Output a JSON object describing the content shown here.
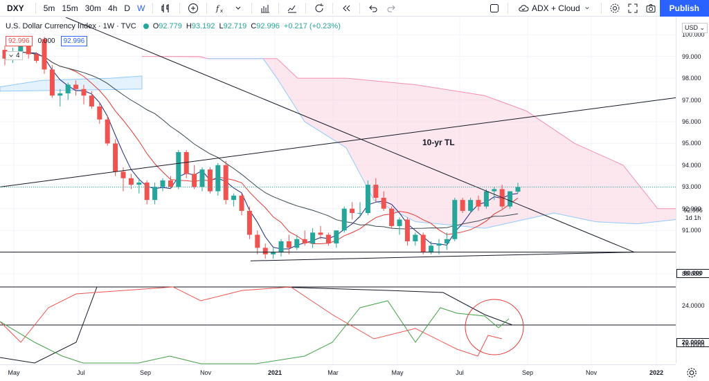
{
  "toolbar": {
    "symbol": "DXY",
    "intervals": [
      "5m",
      "15m",
      "30m",
      "4h",
      "D",
      "W"
    ],
    "active_interval": "W",
    "layout_name": "ADX + Cloud",
    "publish_label": "Publish"
  },
  "legend": {
    "title": "U.S. Dollar Currency Index · 1W · TVC",
    "open_label": "O",
    "open": "92.779",
    "high_label": "H",
    "high": "93.192",
    "low_label": "L",
    "low": "92.719",
    "close_label": "C",
    "close": "92.996",
    "change": "+0.217 (+0.23%)",
    "ind_value_1": "92.996",
    "ind_value_2": "0.000",
    "ind_value_3": "92.996",
    "collapse_count": "4"
  },
  "currency_select": "USD",
  "price_scale": {
    "ticks": [
      "100.000",
      "99.000",
      "98.000",
      "97.000",
      "96.000",
      "95.000",
      "94.000",
      "93.000",
      "92.000",
      "91.000",
      "89.000"
    ],
    "current_price": "92.996",
    "countdown": "1d 1h",
    "line_90": "90.000",
    "indicator_ticks": [
      "24.0000",
      "16.0000"
    ],
    "line_20": "20.0000"
  },
  "time_scale": {
    "labels": [
      "May",
      "Jul",
      "Sep",
      "Nov",
      "2021",
      "Mar",
      "May",
      "Jul",
      "Sep",
      "Nov",
      "2022"
    ]
  },
  "annotation": "10-yr TL",
  "colors": {
    "up": "#26a69a",
    "down": "#ef5350",
    "accent": "#2962ff",
    "cloud": "#f8bbd0"
  },
  "chart_data": {
    "type": "candlestick",
    "symbol": "DXY",
    "timeframe": "1W",
    "ylim": [
      88.4,
      100.8
    ],
    "candles": [
      {
        "o": 99.3,
        "h": 99.5,
        "l": 98.6,
        "c": 98.9
      },
      {
        "o": 98.9,
        "h": 99.4,
        "l": 98.7,
        "c": 99.2
      },
      {
        "o": 99.2,
        "h": 99.8,
        "l": 98.9,
        "c": 99.5
      },
      {
        "o": 99.5,
        "h": 99.7,
        "l": 98.9,
        "c": 99.1
      },
      {
        "o": 99.1,
        "h": 99.2,
        "l": 98.7,
        "c": 98.8
      },
      {
        "o": 99.8,
        "h": 99.9,
        "l": 98.2,
        "c": 98.4
      },
      {
        "o": 98.4,
        "h": 98.6,
        "l": 97.1,
        "c": 97.2
      },
      {
        "o": 97.2,
        "h": 97.5,
        "l": 96.7,
        "c": 97.3
      },
      {
        "o": 97.3,
        "h": 97.8,
        "l": 97.0,
        "c": 97.7
      },
      {
        "o": 97.7,
        "h": 97.9,
        "l": 97.2,
        "c": 97.5
      },
      {
        "o": 97.5,
        "h": 97.7,
        "l": 96.8,
        "c": 97.2
      },
      {
        "o": 97.2,
        "h": 97.4,
        "l": 96.6,
        "c": 96.7
      },
      {
        "o": 96.7,
        "h": 96.9,
        "l": 95.9,
        "c": 96.1
      },
      {
        "o": 96.1,
        "h": 96.3,
        "l": 94.9,
        "c": 95.0
      },
      {
        "o": 95.0,
        "h": 95.2,
        "l": 93.5,
        "c": 93.7
      },
      {
        "o": 93.7,
        "h": 93.9,
        "l": 92.8,
        "c": 93.4
      },
      {
        "o": 93.4,
        "h": 93.6,
        "l": 92.9,
        "c": 93.1
      },
      {
        "o": 93.1,
        "h": 93.4,
        "l": 92.7,
        "c": 93.2
      },
      {
        "o": 93.2,
        "h": 93.3,
        "l": 92.2,
        "c": 92.4
      },
      {
        "o": 92.4,
        "h": 93.2,
        "l": 92.2,
        "c": 93.0
      },
      {
        "o": 93.0,
        "h": 93.4,
        "l": 92.8,
        "c": 93.3
      },
      {
        "o": 93.3,
        "h": 93.5,
        "l": 92.9,
        "c": 93.0
      },
      {
        "o": 93.0,
        "h": 94.7,
        "l": 92.9,
        "c": 94.6
      },
      {
        "o": 94.6,
        "h": 94.7,
        "l": 93.4,
        "c": 93.6
      },
      {
        "o": 93.6,
        "h": 94.0,
        "l": 92.9,
        "c": 93.0
      },
      {
        "o": 93.0,
        "h": 93.9,
        "l": 92.8,
        "c": 93.8
      },
      {
        "o": 93.8,
        "h": 93.9,
        "l": 92.7,
        "c": 92.8
      },
      {
        "o": 92.8,
        "h": 94.1,
        "l": 92.6,
        "c": 94.0
      },
      {
        "o": 94.0,
        "h": 94.2,
        "l": 92.2,
        "c": 92.4
      },
      {
        "o": 92.4,
        "h": 92.7,
        "l": 92.1,
        "c": 92.6
      },
      {
        "o": 92.6,
        "h": 92.7,
        "l": 91.7,
        "c": 91.9
      },
      {
        "o": 91.9,
        "h": 92.1,
        "l": 90.6,
        "c": 90.8
      },
      {
        "o": 90.8,
        "h": 91.0,
        "l": 89.9,
        "c": 90.2
      },
      {
        "o": 90.2,
        "h": 90.4,
        "l": 89.7,
        "c": 89.9
      },
      {
        "o": 89.9,
        "h": 90.2,
        "l": 89.7,
        "c": 90.0
      },
      {
        "o": 90.0,
        "h": 90.6,
        "l": 89.8,
        "c": 90.5
      },
      {
        "o": 90.5,
        "h": 90.8,
        "l": 89.9,
        "c": 90.2
      },
      {
        "o": 90.2,
        "h": 90.8,
        "l": 90.1,
        "c": 90.6
      },
      {
        "o": 90.6,
        "h": 91.0,
        "l": 90.3,
        "c": 90.4
      },
      {
        "o": 90.4,
        "h": 91.1,
        "l": 90.2,
        "c": 90.9
      },
      {
        "o": 90.9,
        "h": 91.2,
        "l": 90.6,
        "c": 90.8
      },
      {
        "o": 90.8,
        "h": 90.9,
        "l": 90.3,
        "c": 90.4
      },
      {
        "o": 90.4,
        "h": 91.0,
        "l": 90.2,
        "c": 91.0
      },
      {
        "o": 91.0,
        "h": 92.1,
        "l": 90.9,
        "c": 92.0
      },
      {
        "o": 92.0,
        "h": 92.3,
        "l": 91.5,
        "c": 91.8
      },
      {
        "o": 91.8,
        "h": 92.3,
        "l": 91.6,
        "c": 91.8
      },
      {
        "o": 91.8,
        "h": 93.3,
        "l": 91.7,
        "c": 93.1
      },
      {
        "o": 93.1,
        "h": 93.4,
        "l": 92.3,
        "c": 92.5
      },
      {
        "o": 92.5,
        "h": 92.8,
        "l": 91.9,
        "c": 92.0
      },
      {
        "o": 92.0,
        "h": 92.1,
        "l": 91.1,
        "c": 91.2
      },
      {
        "o": 91.2,
        "h": 91.6,
        "l": 90.8,
        "c": 91.5
      },
      {
        "o": 91.5,
        "h": 91.6,
        "l": 90.3,
        "c": 90.5
      },
      {
        "o": 90.5,
        "h": 90.9,
        "l": 90.3,
        "c": 90.8
      },
      {
        "o": 90.8,
        "h": 90.9,
        "l": 89.9,
        "c": 90.0
      },
      {
        "o": 90.0,
        "h": 90.5,
        "l": 89.9,
        "c": 90.3
      },
      {
        "o": 90.3,
        "h": 90.6,
        "l": 89.9,
        "c": 90.4
      },
      {
        "o": 90.4,
        "h": 90.9,
        "l": 90.1,
        "c": 90.6
      },
      {
        "o": 90.6,
        "h": 92.5,
        "l": 90.5,
        "c": 92.4
      },
      {
        "o": 92.4,
        "h": 92.5,
        "l": 91.8,
        "c": 91.9
      },
      {
        "o": 91.9,
        "h": 92.5,
        "l": 91.8,
        "c": 92.4
      },
      {
        "o": 92.4,
        "h": 92.6,
        "l": 91.9,
        "c": 92.1
      },
      {
        "o": 92.1,
        "h": 92.9,
        "l": 92.0,
        "c": 92.8
      },
      {
        "o": 92.8,
        "h": 93.0,
        "l": 92.4,
        "c": 92.9
      },
      {
        "o": 92.9,
        "h": 93.1,
        "l": 92.0,
        "c": 92.1
      },
      {
        "o": 92.1,
        "h": 92.8,
        "l": 92.0,
        "c": 92.8
      },
      {
        "o": 92.779,
        "h": 93.192,
        "l": 92.719,
        "c": 92.996
      }
    ]
  }
}
